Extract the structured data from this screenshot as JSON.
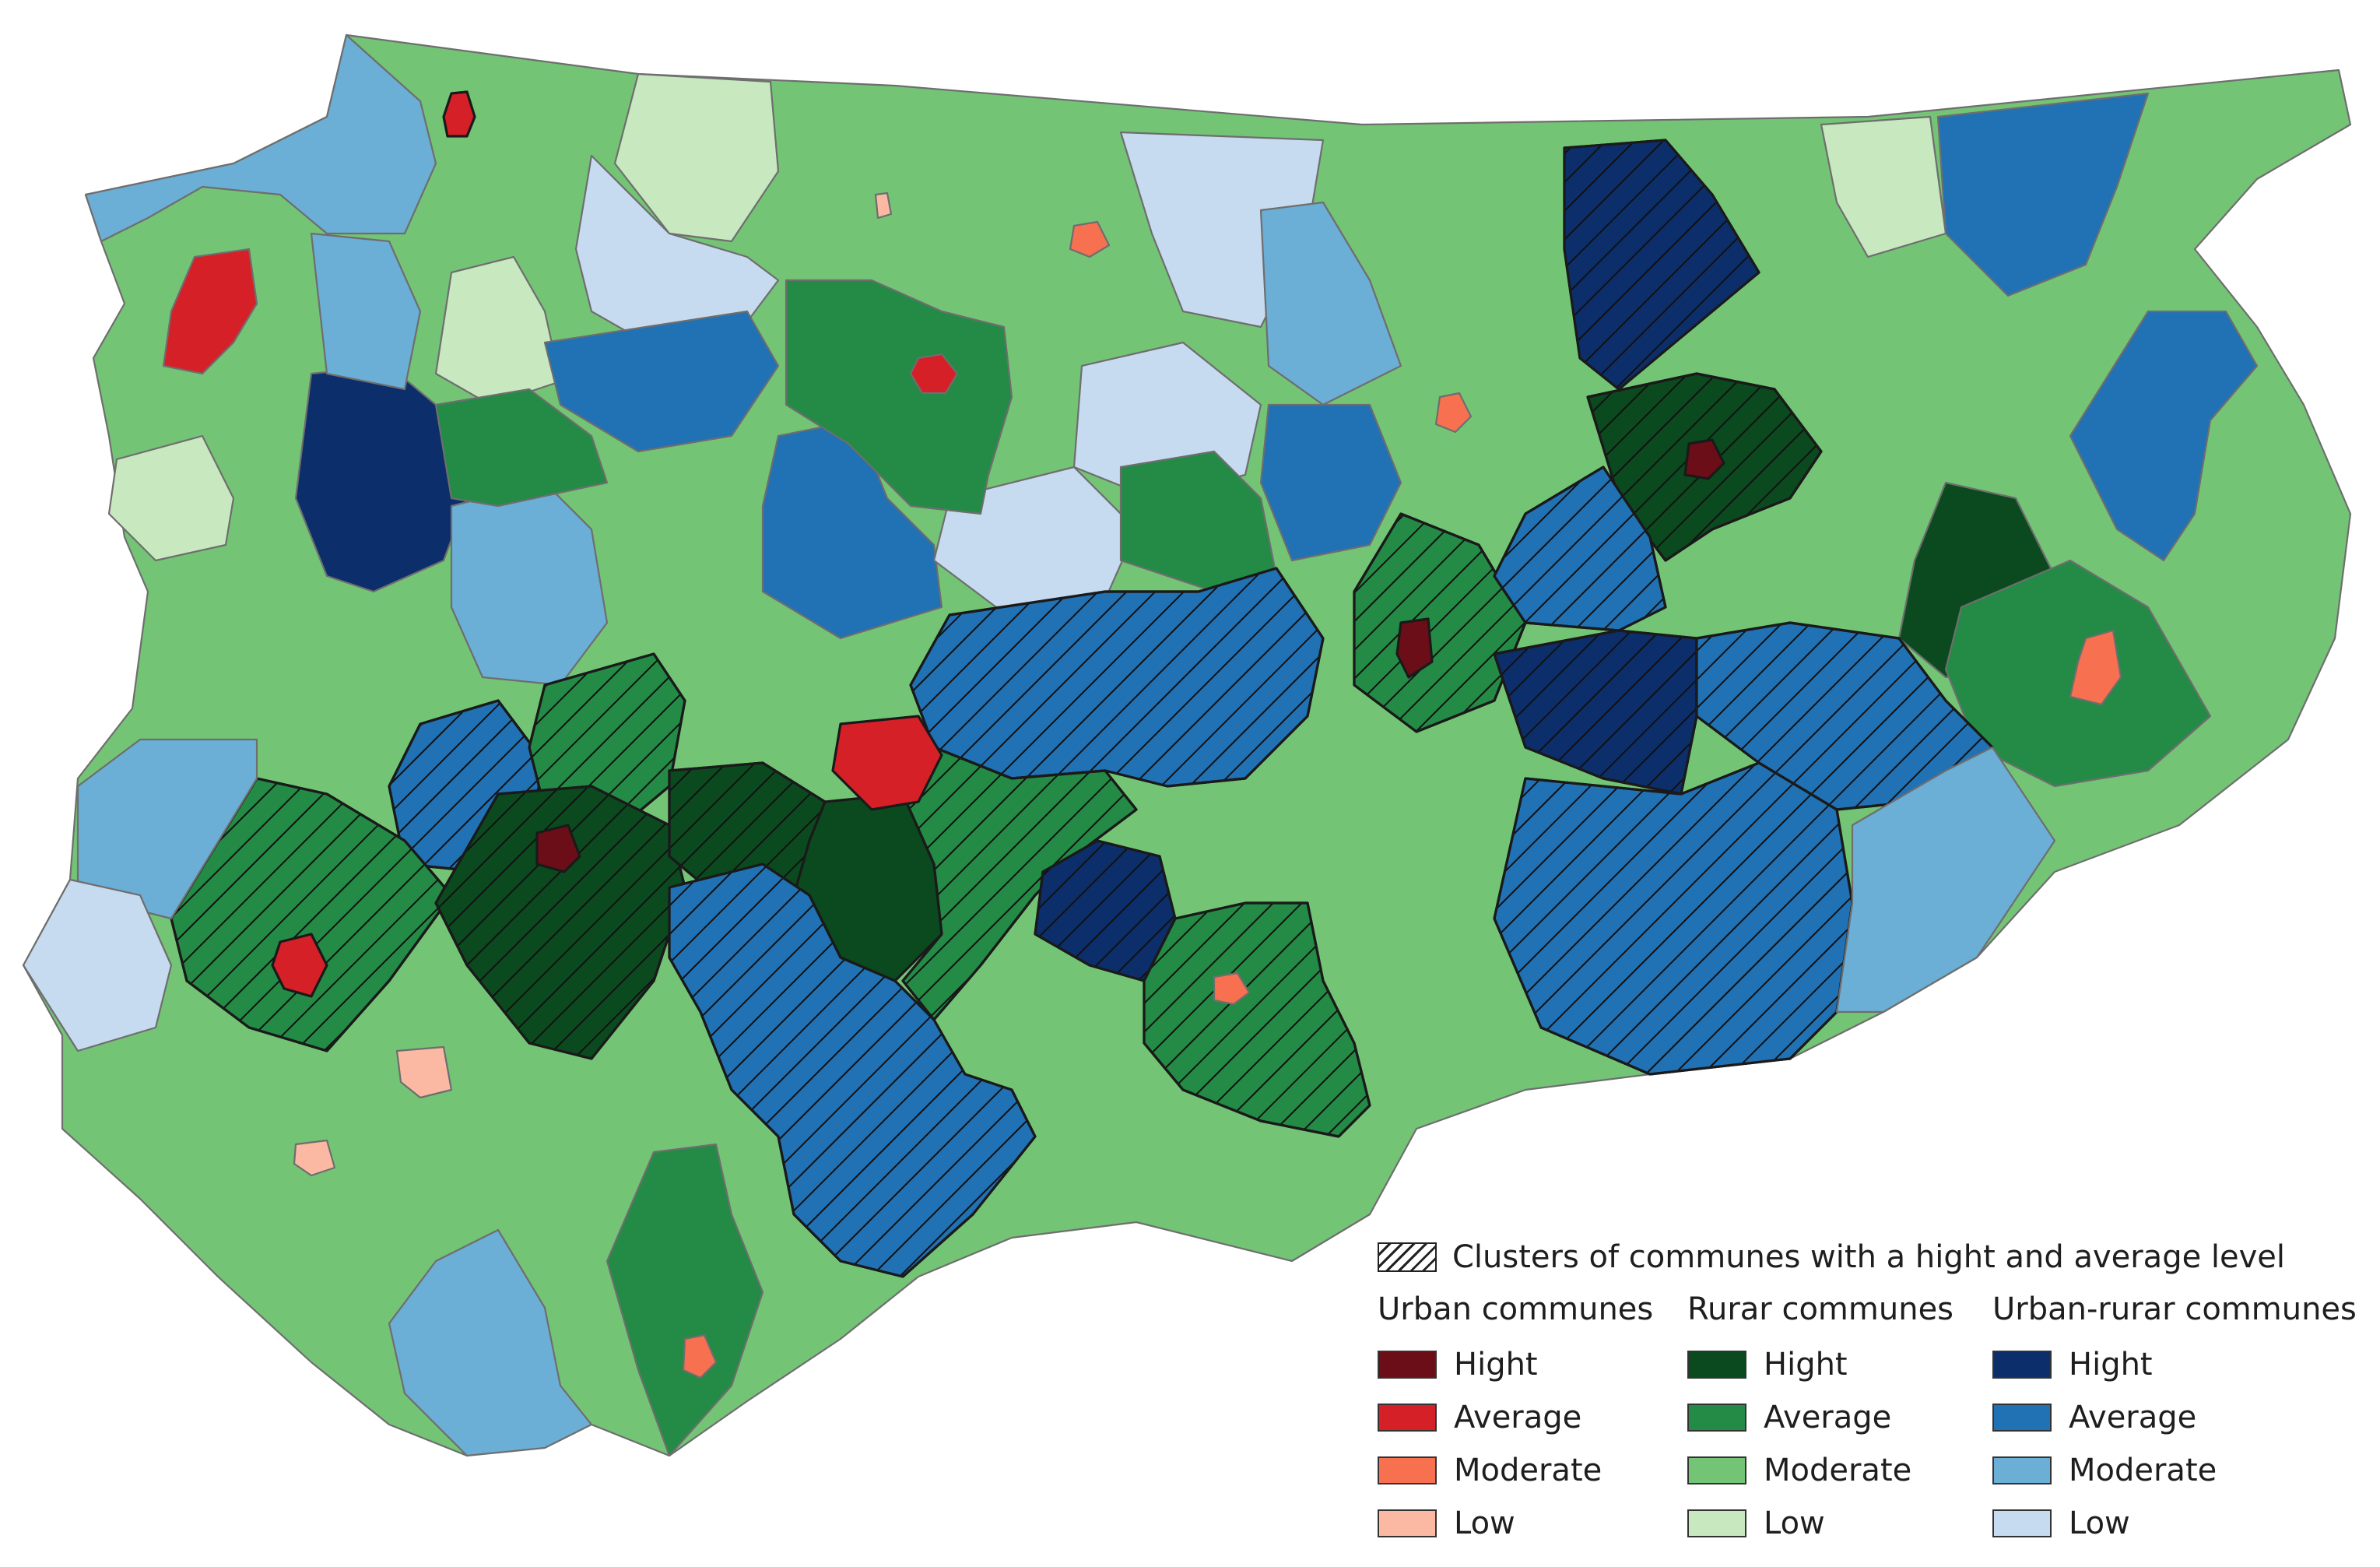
{
  "legend": {
    "cluster_label": "Clusters of communes with a hight and average level",
    "groups": [
      {
        "title": "Urban communes",
        "items": [
          {
            "label": "Hight",
            "color": "#6b0e17"
          },
          {
            "label": "Average",
            "color": "#d62027"
          },
          {
            "label": "Moderate",
            "color": "#f7704f"
          },
          {
            "label": "Low",
            "color": "#fbb9a3"
          }
        ]
      },
      {
        "title": "Rurar communes",
        "items": [
          {
            "label": "Hight",
            "color": "#0b4a1f"
          },
          {
            "label": "Average",
            "color": "#238b45"
          },
          {
            "label": "Moderate",
            "color": "#74c476"
          },
          {
            "label": "Low",
            "color": "#c8e8c0"
          }
        ]
      },
      {
        "title": "Urban-rurar communes",
        "items": [
          {
            "label": "Hight",
            "color": "#0c2e6b"
          },
          {
            "label": "Average",
            "color": "#2171b5"
          },
          {
            "label": "Moderate",
            "color": "#6baed6"
          },
          {
            "label": "Low",
            "color": "#c6dbef"
          }
        ]
      }
    ]
  }
}
